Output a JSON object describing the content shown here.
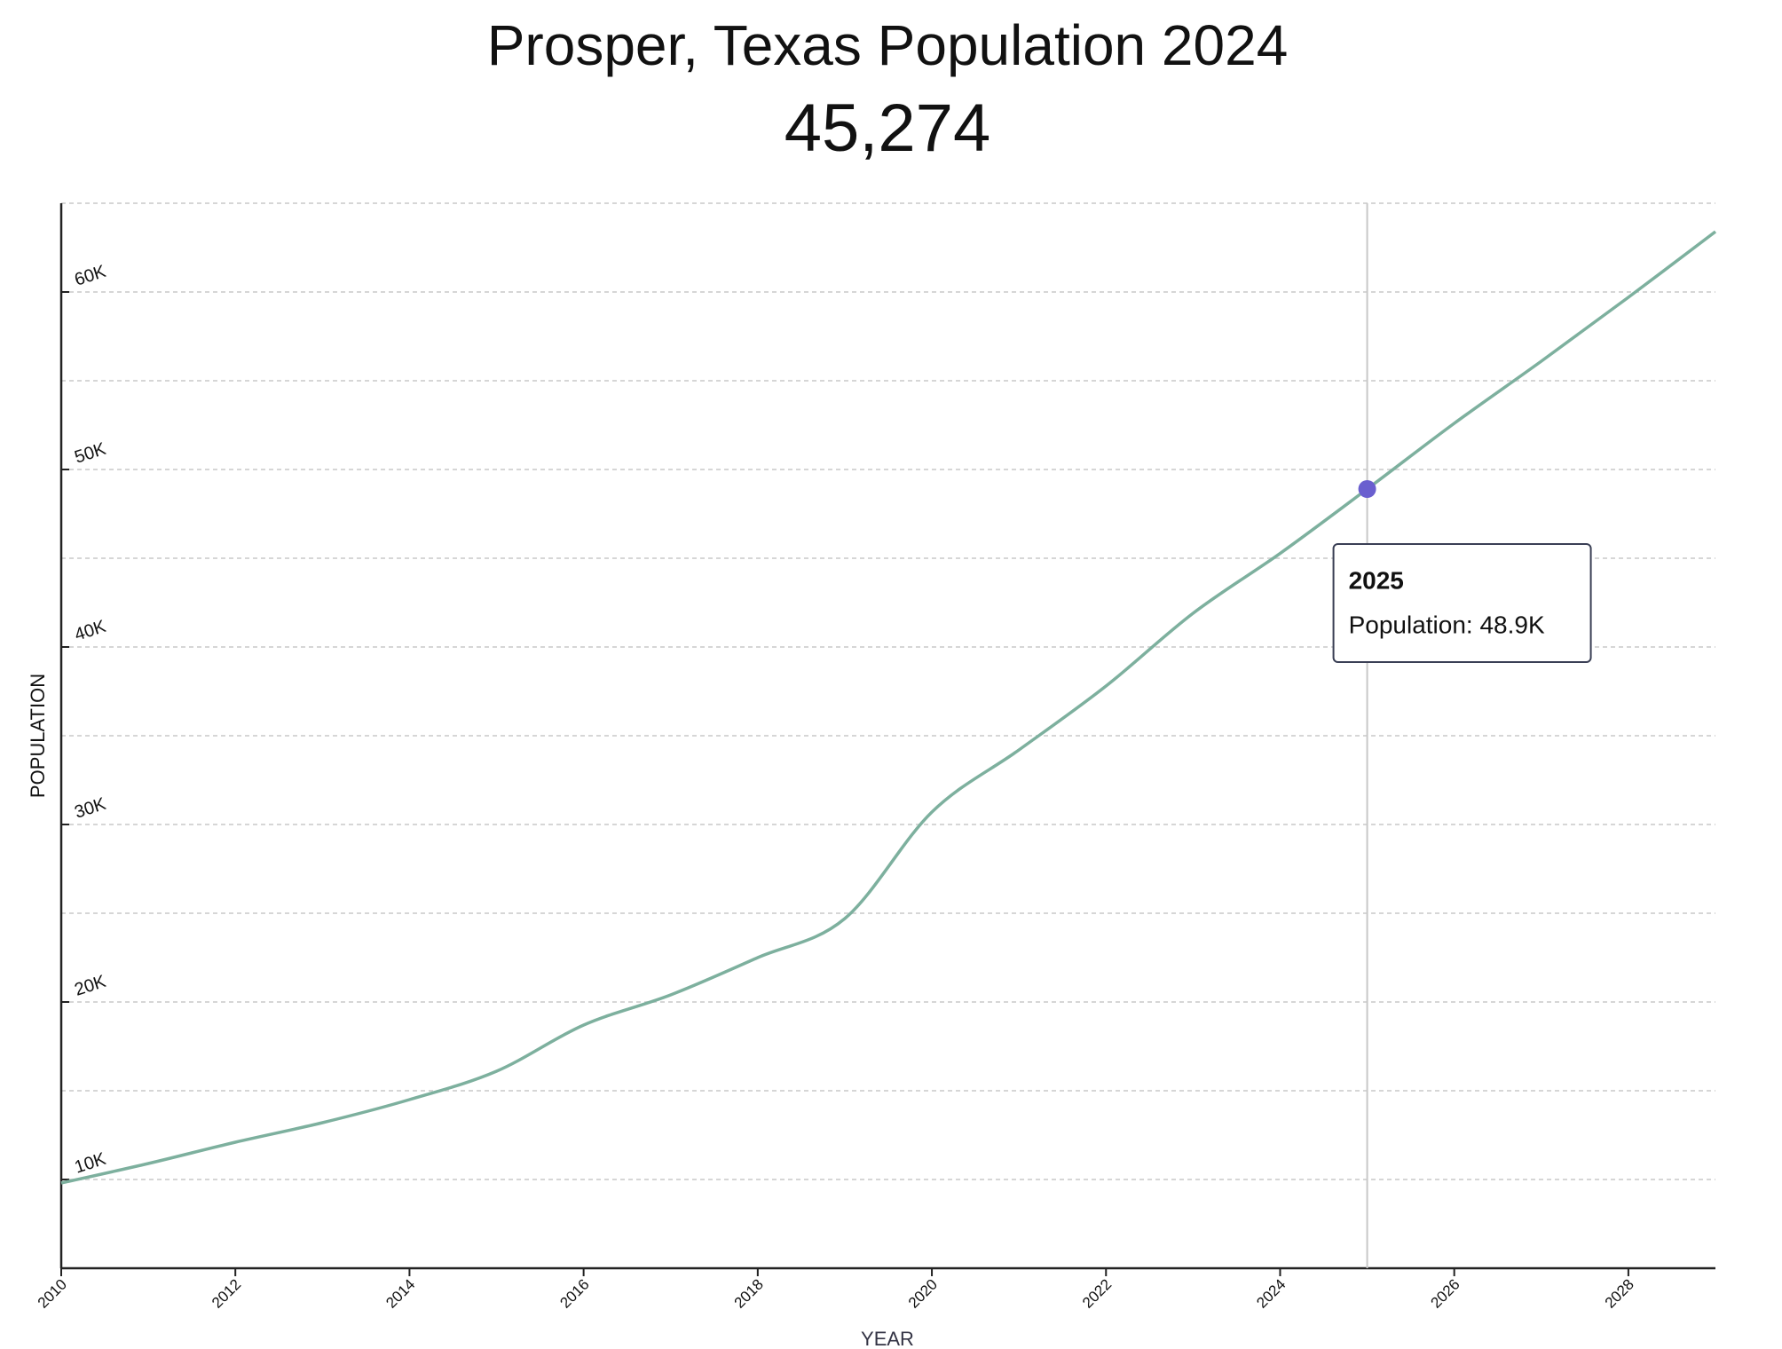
{
  "chart_data": {
    "type": "line",
    "title": "Prosper, Texas Population 2024",
    "subtitle": "45,274",
    "x_label": "YEAR",
    "y_label": "POPULATION",
    "x": [
      2010,
      2011,
      2012,
      2013,
      2014,
      2015,
      2016,
      2017,
      2018,
      2019,
      2020,
      2021,
      2022,
      2023,
      2024,
      2025,
      2026,
      2027,
      2028,
      2029
    ],
    "series": [
      {
        "name": "Population",
        "color": "#7db09e",
        "values": [
          9800,
          10900,
          12100,
          13200,
          14500,
          16100,
          18700,
          20400,
          22500,
          24700,
          30700,
          34200,
          37800,
          41900,
          45274,
          48900,
          52600,
          56100,
          59700,
          63400
        ]
      }
    ],
    "xlim": [
      2010,
      2029
    ],
    "xticks": [
      2010,
      2012,
      2014,
      2016,
      2018,
      2020,
      2022,
      2024,
      2026,
      2028
    ],
    "ylim": [
      5000,
      65000
    ],
    "yticks": [
      {
        "value": 10000,
        "label": "10K"
      },
      {
        "value": 20000,
        "label": "20K"
      },
      {
        "value": 30000,
        "label": "30K"
      },
      {
        "value": 40000,
        "label": "40K"
      },
      {
        "value": 50000,
        "label": "50K"
      },
      {
        "value": 60000,
        "label": "60K"
      }
    ],
    "grid_lines": [
      5000,
      10000,
      15000,
      20000,
      25000,
      30000,
      35000,
      40000,
      45000,
      50000,
      55000,
      60000,
      65000
    ],
    "grid": true,
    "highlight": {
      "x": 2025,
      "label": "Population: 48.9K",
      "color": "#6a5fcf"
    }
  }
}
